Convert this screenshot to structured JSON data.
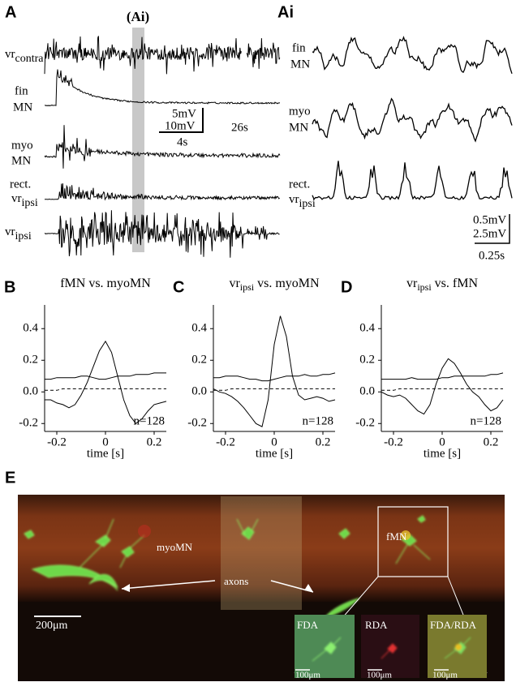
{
  "panel_a": {
    "letter": "A",
    "ai_marker": "(Ai)",
    "vr_contra": [
      "vr",
      "contra"
    ],
    "fin_mn": [
      "fin",
      "MN"
    ],
    "myo_mn": [
      "myo",
      "MN"
    ],
    "rect_vr_ipsi": [
      "rect.",
      "vr",
      "ipsi"
    ],
    "vr_ipsi": [
      "vr",
      "ipsi"
    ],
    "scale": {
      "v1": "5mV",
      "v2": "10mV",
      "t1": "4s",
      "t2": "26s"
    }
  },
  "panel_ai": {
    "letter": "Ai",
    "fin_mn": [
      "fin",
      "MN"
    ],
    "myo_mn": [
      "myo",
      "MN"
    ],
    "rect_vr_ipsi": [
      "rect.",
      "vr",
      "ipsi"
    ],
    "scale": {
      "v1": "0.5mV",
      "v2": "2.5mV",
      "t": "0.25s"
    }
  },
  "chart_data": [
    {
      "type": "line",
      "panel": "B",
      "title": [
        "fMN vs.  myoMN"
      ],
      "annotation": "n=128",
      "x_label": "time [s]",
      "x": [
        -0.25,
        -0.225,
        -0.2,
        -0.175,
        -0.15,
        -0.125,
        -0.1,
        -0.075,
        -0.05,
        -0.025,
        0,
        0.025,
        0.05,
        0.075,
        0.1,
        0.125,
        0.15,
        0.175,
        0.2,
        0.225,
        0.25
      ],
      "xlim": [
        -0.25,
        0.25
      ],
      "xticks": [
        -0.2,
        0,
        0.2
      ],
      "ylim": [
        -0.25,
        0.55
      ],
      "yticks": [
        -0.2,
        {
          "value": 0,
          "label": "0.0"
        },
        0.2,
        0.4
      ],
      "series": [
        {
          "color": "#000",
          "dashed": false,
          "values": [
            -0.05,
            -0.05,
            -0.07,
            -0.08,
            -0.1,
            -0.08,
            -0.02,
            0.06,
            0.16,
            0.26,
            0.32,
            0.25,
            0.1,
            -0.05,
            -0.15,
            -0.2,
            -0.17,
            -0.12,
            -0.08,
            -0.07,
            -0.06
          ]
        },
        {
          "color": "#000",
          "dashed": false,
          "values": [
            0.08,
            0.08,
            0.09,
            0.09,
            0.09,
            0.09,
            0.1,
            0.1,
            0.09,
            0.08,
            0.08,
            0.09,
            0.1,
            0.1,
            0.1,
            0.11,
            0.11,
            0.11,
            0.12,
            0.12,
            0.12
          ]
        },
        {
          "color": "#000",
          "dashed": true,
          "values": [
            0.01,
            0.01,
            0.01,
            0.02,
            0.02,
            0.02,
            0.02,
            0.02,
            0.02,
            0.02,
            0.02,
            0.02,
            0.02,
            0.02,
            0.02,
            0.02,
            0.02,
            0.02,
            0.02,
            0.02,
            0.02
          ]
        }
      ]
    },
    {
      "type": "line",
      "panel": "C",
      "title": [
        "vr",
        "ipsi",
        " vs.  myoMN"
      ],
      "annotation": "n=128",
      "x_label": "time [s]",
      "x": [
        -0.25,
        -0.225,
        -0.2,
        -0.175,
        -0.15,
        -0.125,
        -0.1,
        -0.075,
        -0.05,
        -0.025,
        0,
        0.025,
        0.05,
        0.075,
        0.1,
        0.125,
        0.15,
        0.175,
        0.2,
        0.225,
        0.25
      ],
      "xlim": [
        -0.25,
        0.25
      ],
      "xticks": [
        -0.2,
        0,
        0.2
      ],
      "ylim": [
        -0.25,
        0.55
      ],
      "yticks": [
        -0.2,
        {
          "value": 0,
          "label": "0.0"
        },
        0.2,
        0.4
      ],
      "series": [
        {
          "color": "#000",
          "dashed": false,
          "values": [
            0.02,
            0.0,
            -0.01,
            -0.03,
            -0.06,
            -0.1,
            -0.15,
            -0.2,
            -0.22,
            -0.05,
            0.3,
            0.48,
            0.35,
            0.1,
            -0.02,
            -0.05,
            -0.04,
            -0.03,
            -0.04,
            -0.06,
            -0.05
          ]
        },
        {
          "color": "#000",
          "dashed": false,
          "values": [
            0.09,
            0.09,
            0.1,
            0.1,
            0.1,
            0.09,
            0.08,
            0.08,
            0.07,
            0.07,
            0.08,
            0.09,
            0.1,
            0.1,
            0.1,
            0.11,
            0.1,
            0.1,
            0.11,
            0.11,
            0.12
          ]
        },
        {
          "color": "#000",
          "dashed": true,
          "values": [
            0.01,
            0.01,
            0.01,
            0.02,
            0.02,
            0.02,
            0.02,
            0.02,
            0.02,
            0.02,
            0.02,
            0.02,
            0.02,
            0.02,
            0.02,
            0.02,
            0.02,
            0.02,
            0.02,
            0.02,
            0.02
          ]
        }
      ]
    },
    {
      "type": "line",
      "panel": "D",
      "title": [
        "vr",
        "ipsi",
        " vs.  fMN"
      ],
      "annotation": "n=128",
      "x_label": "time [s]",
      "x": [
        -0.25,
        -0.225,
        -0.2,
        -0.175,
        -0.15,
        -0.125,
        -0.1,
        -0.075,
        -0.05,
        -0.025,
        0,
        0.025,
        0.05,
        0.075,
        0.1,
        0.125,
        0.15,
        0.175,
        0.2,
        0.225,
        0.25
      ],
      "xlim": [
        -0.25,
        0.25
      ],
      "xticks": [
        -0.2,
        0,
        0.2
      ],
      "ylim": [
        -0.25,
        0.55
      ],
      "yticks": [
        -0.2,
        {
          "value": 0,
          "label": "0.0"
        },
        0.2,
        0.4
      ],
      "series": [
        {
          "color": "#000",
          "dashed": false,
          "values": [
            0.0,
            -0.02,
            -0.03,
            -0.02,
            -0.04,
            -0.08,
            -0.12,
            -0.14,
            -0.08,
            0.05,
            0.15,
            0.21,
            0.18,
            0.12,
            0.05,
            0.0,
            -0.03,
            -0.08,
            -0.12,
            -0.1,
            -0.05
          ]
        },
        {
          "color": "#000",
          "dashed": false,
          "values": [
            0.08,
            0.08,
            0.08,
            0.08,
            0.08,
            0.09,
            0.08,
            0.08,
            0.08,
            0.08,
            0.09,
            0.09,
            0.1,
            0.1,
            0.1,
            0.1,
            0.1,
            0.1,
            0.11,
            0.11,
            0.12
          ]
        },
        {
          "color": "#000",
          "dashed": true,
          "values": [
            0.01,
            0.01,
            0.01,
            0.02,
            0.02,
            0.02,
            0.02,
            0.02,
            0.02,
            0.02,
            0.02,
            0.02,
            0.02,
            0.02,
            0.02,
            0.02,
            0.02,
            0.02,
            0.02,
            0.02,
            0.02
          ]
        }
      ]
    }
  ],
  "panel_e": {
    "letter": "E",
    "myo_label": "myoMN",
    "axons_label": "axons",
    "fmn_label": "fMN",
    "scale_bar": "200μm",
    "insets": [
      {
        "title": "FDA",
        "scale": "100μm"
      },
      {
        "title": "RDA",
        "scale": "100μm"
      },
      {
        "title": "FDA/RDA",
        "scale": "100μm"
      }
    ]
  }
}
